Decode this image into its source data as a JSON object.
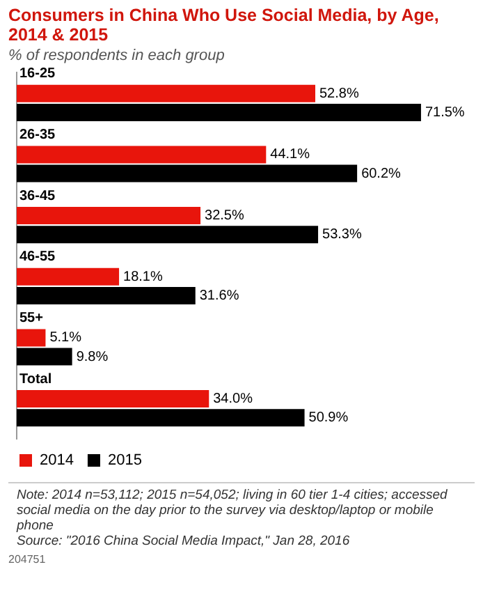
{
  "chart_data": {
    "type": "bar",
    "orientation": "horizontal",
    "title": "Consumers in China Who Use Social Media, by Age, 2014 & 2015",
    "subtitle": "% of respondents in each group",
    "categories": [
      "16-25",
      "26-35",
      "36-45",
      "46-55",
      "55+",
      "Total"
    ],
    "series": [
      {
        "name": "2014",
        "color": "#e8150c",
        "values": [
          52.8,
          44.1,
          32.5,
          18.1,
          5.1,
          34.0
        ],
        "value_labels": [
          "52.8%",
          "44.1%",
          "32.5%",
          "18.1%",
          "5.1%",
          "34.0%"
        ]
      },
      {
        "name": "2015",
        "color": "#000000",
        "values": [
          71.5,
          60.2,
          53.3,
          31.6,
          9.8,
          50.9
        ],
        "value_labels": [
          "71.5%",
          "60.2%",
          "53.3%",
          "31.6%",
          "9.8%",
          "50.9%"
        ]
      }
    ],
    "legend": "bottom",
    "grid": false,
    "tick_labels": "y",
    "annotations": [
      "Note: 2014 n=53,112; 2015 n=54,052; living in 60 tier 1-4 cities; accessed social media on the day prior to the survey via desktop/laptop or mobile phone",
      "Source: \"2016 China Social Media Impact,\" Jan 28, 2016",
      "204751"
    ]
  }
}
